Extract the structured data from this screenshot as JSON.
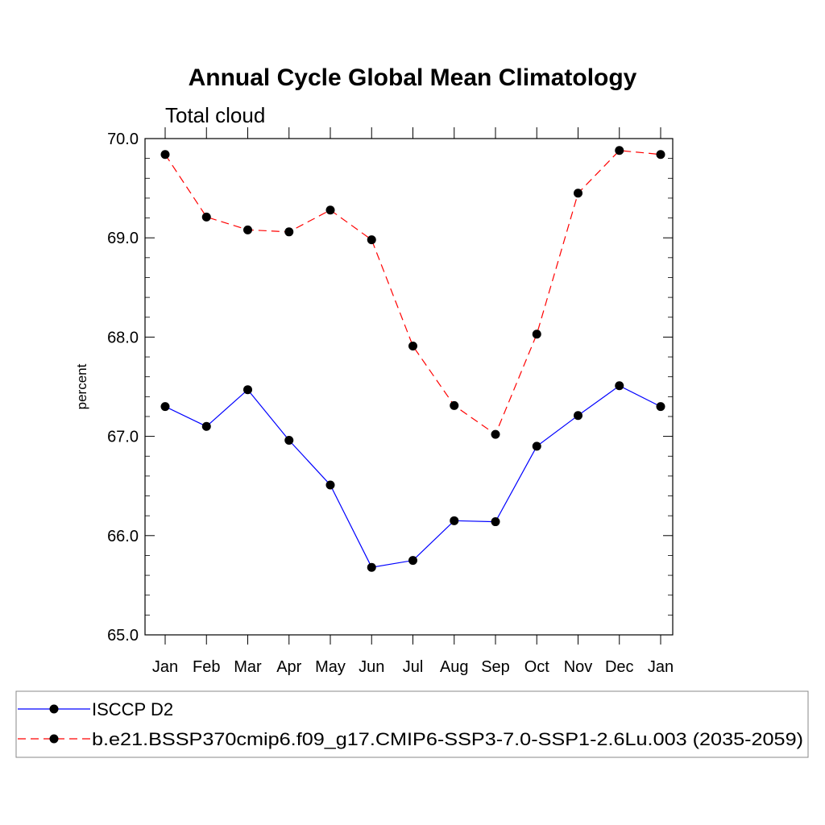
{
  "chart_data": {
    "type": "line",
    "title": "Annual Cycle Global Mean Climatology",
    "subtitle": "Total cloud",
    "xlabel": "",
    "ylabel": "percent",
    "categories": [
      "Jan",
      "Feb",
      "Mar",
      "Apr",
      "May",
      "Jun",
      "Jul",
      "Aug",
      "Sep",
      "Oct",
      "Nov",
      "Dec",
      "Jan"
    ],
    "ylim": [
      65.0,
      70.0
    ],
    "yticks": [
      "65.0",
      "66.0",
      "67.0",
      "68.0",
      "69.0",
      "70.0"
    ],
    "y_minor_step": 0.2,
    "grid": false,
    "legend_position": "bottom",
    "series": [
      {
        "name": "ISCCP D2",
        "color": "#0000ff",
        "line_style": "solid",
        "marker": "filled-circle",
        "values": [
          67.3,
          67.1,
          67.47,
          66.96,
          66.51,
          65.68,
          65.75,
          66.15,
          66.14,
          66.9,
          67.21,
          67.51,
          67.3
        ]
      },
      {
        "name": "b.e21.BSSP370cmip6.f09_g17.CMIP6-SSP3-7.0-SSP1-2.6Lu.003 (2035-2059)",
        "color": "#ff0000",
        "line_style": "dashed",
        "marker": "filled-circle",
        "values": [
          69.84,
          69.21,
          69.08,
          69.06,
          69.28,
          68.98,
          67.91,
          67.31,
          67.02,
          68.03,
          69.45,
          69.88,
          69.84
        ]
      }
    ]
  }
}
